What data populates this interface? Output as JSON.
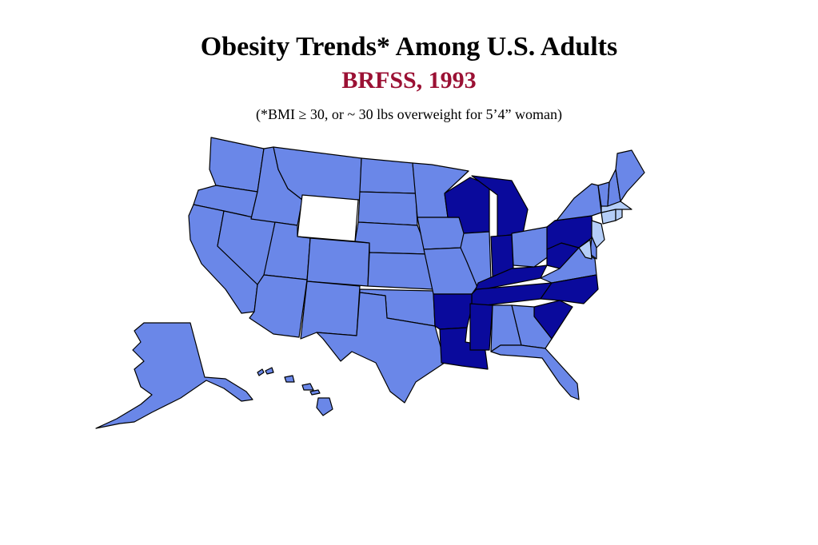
{
  "title": "Obesity Trends* Among U.S. Adults",
  "subtitle": "BRFSS, 1993",
  "footnote": "(*BMI ≥ 30, or ~ 30 lbs overweight for 5’4” woman)",
  "colors": {
    "subtitle": "#9B1134",
    "no_data": "#FFFFFF",
    "category_light": "#B4CDF7",
    "category_medium": "#6A87E8",
    "category_dark": "#0A0A9C",
    "border": "#000000"
  },
  "map": {
    "states_no_data": [
      "WY"
    ],
    "states_light": [
      "MA",
      "CT",
      "RI",
      "NJ",
      "MD"
    ],
    "states_medium": [
      "WA",
      "OR",
      "CA",
      "NV",
      "ID",
      "MT",
      "UT",
      "AZ",
      "CO",
      "NM",
      "ND",
      "SD",
      "NE",
      "KS",
      "OK",
      "TX",
      "MN",
      "IA",
      "MO",
      "IL",
      "OH",
      "ME",
      "VT",
      "NH",
      "NY",
      "DE",
      "VA",
      "GA",
      "AL",
      "FL",
      "AK",
      "HI"
    ],
    "states_dark": [
      "WI",
      "MI",
      "IN",
      "KY",
      "WV",
      "PA",
      "TN",
      "NC",
      "SC",
      "AR",
      "LA",
      "MS"
    ]
  }
}
